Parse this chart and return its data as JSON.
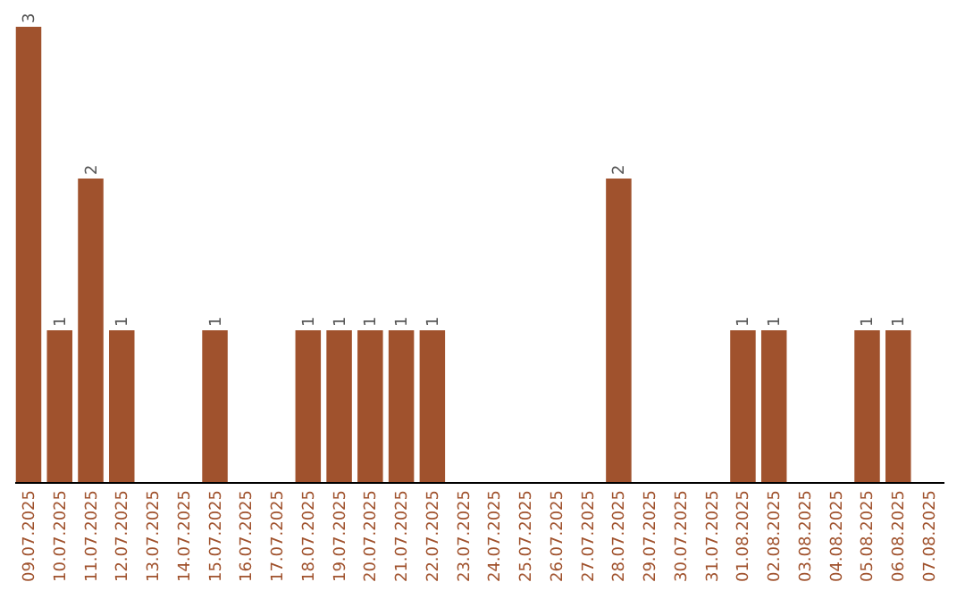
{
  "chart_data": {
    "type": "bar",
    "categories": [
      "09.07.2025",
      "10.07.2025",
      "11.07.2025",
      "12.07.2025",
      "13.07.2025",
      "14.07.2025",
      "15.07.2025",
      "16.07.2025",
      "17.07.2025",
      "18.07.2025",
      "19.07.2025",
      "20.07.2025",
      "21.07.2025",
      "22.07.2025",
      "23.07.2025",
      "24.07.2025",
      "25.07.2025",
      "26.07.2025",
      "27.07.2025",
      "28.07.2025",
      "29.07.2025",
      "30.07.2025",
      "31.07.2025",
      "01.08.2025",
      "02.08.2025",
      "03.08.2025",
      "04.08.2025",
      "05.08.2025",
      "06.08.2025",
      "07.08.2025"
    ],
    "values": [
      3,
      1,
      2,
      1,
      0,
      0,
      1,
      0,
      0,
      1,
      1,
      1,
      1,
      1,
      0,
      0,
      0,
      0,
      0,
      2,
      0,
      0,
      0,
      1,
      1,
      0,
      0,
      1,
      1,
      0
    ],
    "value_labels": [
      "3",
      "1",
      "2",
      "1",
      null,
      null,
      "1",
      null,
      null,
      "1",
      "1",
      "1",
      "1",
      "1",
      null,
      null,
      null,
      null,
      null,
      "2",
      null,
      null,
      null,
      "1",
      "1",
      null,
      null,
      "1",
      "1",
      null
    ],
    "color": "#a0522d",
    "tick_labels": "x",
    "grid": false
  }
}
